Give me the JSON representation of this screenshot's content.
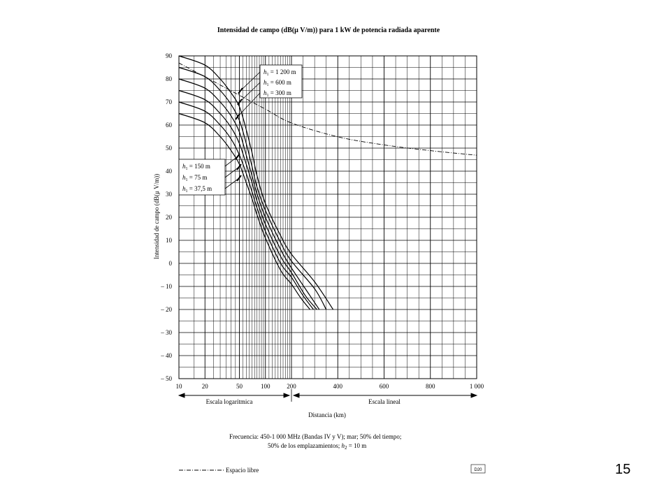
{
  "page_number": "15",
  "figure_code": "D20",
  "chart_data": {
    "type": "line",
    "title": "Intensidad de campo (dB(μ V/m)) para 1 kW de potencia radiada aparente",
    "ylabel": "Intensidad de campo (dB(μ V/m))",
    "xlabel": "Distancia (km)",
    "ylim": [
      -50,
      90
    ],
    "xlim": [
      10,
      1000
    ],
    "x_scale": "logarithmic 10–200 km, linear 200–1000 km",
    "y_ticks": [
      "90",
      "80",
      "70",
      "60",
      "50",
      "40",
      "30",
      "20",
      "10",
      "0",
      "– 10",
      "– 20",
      "– 30",
      "– 40",
      "– 50"
    ],
    "x_ticks": [
      {
        "value": 10,
        "label": "10"
      },
      {
        "value": 20,
        "label": "20"
      },
      {
        "value": 50,
        "label": "50"
      },
      {
        "value": 100,
        "label": "100"
      },
      {
        "value": 200,
        "label": "200"
      },
      {
        "value": 400,
        "label": "400"
      },
      {
        "value": 600,
        "label": "600"
      },
      {
        "value": 800,
        "label": "800"
      },
      {
        "value": 1000,
        "label": "1 000"
      }
    ],
    "scale_labels": {
      "log": "Escala logarítmica",
      "linear": "Escala lineal"
    },
    "grid": true,
    "h1_labels_upper": [
      {
        "sym": "h",
        "sub": "1",
        "text": "= 1 200 m"
      },
      {
        "sym": "h",
        "sub": "1",
        "text": "=   600 m"
      },
      {
        "sym": "h",
        "sub": "1",
        "text": "=   300 m"
      }
    ],
    "h1_labels_lower": [
      {
        "sym": "h",
        "sub": "1",
        "text": "= 150   m"
      },
      {
        "sym": "h",
        "sub": "1",
        "text": "=  75   m"
      },
      {
        "sym": "h",
        "sub": "1",
        "text": "=  37,5 m"
      }
    ],
    "series": [
      {
        "label": "h1 = 1 200 m",
        "x": [
          10,
          20,
          30,
          40,
          50,
          60,
          70,
          80,
          100,
          150,
          200,
          300,
          380
        ],
        "y": [
          90,
          86,
          80,
          74,
          68,
          58,
          48,
          38,
          26,
          12,
          4,
          -8,
          -20
        ]
      },
      {
        "label": "h1 = 600 m",
        "x": [
          10,
          20,
          30,
          40,
          50,
          60,
          70,
          80,
          100,
          150,
          200,
          300,
          350
        ],
        "y": [
          85,
          81,
          75,
          69,
          62,
          52,
          42,
          33,
          23,
          9,
          1,
          -11,
          -20
        ]
      },
      {
        "label": "h1 = 300 m",
        "x": [
          10,
          20,
          30,
          40,
          50,
          60,
          70,
          80,
          100,
          150,
          200,
          280,
          320
        ],
        "y": [
          80,
          76,
          70,
          64,
          57,
          47,
          38,
          30,
          20,
          6,
          -2,
          -14,
          -20
        ]
      },
      {
        "label": "h1 = 150 m",
        "x": [
          10,
          20,
          30,
          40,
          50,
          60,
          70,
          80,
          100,
          150,
          200,
          260,
          310
        ],
        "y": [
          75,
          71,
          65,
          59,
          52,
          43,
          35,
          27,
          17,
          3,
          -4,
          -14,
          -20
        ]
      },
      {
        "label": "h1 = 75 m",
        "x": [
          10,
          20,
          30,
          40,
          50,
          60,
          70,
          80,
          100,
          150,
          200,
          250,
          295
        ],
        "y": [
          70,
          66,
          60,
          54,
          47,
          39,
          31,
          24,
          14,
          0,
          -6,
          -14,
          -20
        ]
      },
      {
        "label": "h1 = 37,5 m",
        "x": [
          10,
          20,
          30,
          40,
          50,
          60,
          70,
          80,
          100,
          150,
          200,
          240,
          280
        ],
        "y": [
          65,
          61,
          55,
          49,
          43,
          35,
          28,
          21,
          11,
          -3,
          -9,
          -15,
          -20
        ]
      }
    ],
    "free_space": {
      "label": "Espacio libre",
      "x": [
        10,
        20,
        50,
        100,
        200,
        400,
        600,
        800,
        1000
      ],
      "y": [
        86.9,
        80.9,
        72.9,
        66.9,
        60.9,
        54.9,
        51.4,
        48.9,
        46.9
      ]
    },
    "footnote_line1": "Frecuencia: 450-1 000 MHz (Bandas IV y V); mar; 50% del tiempo;",
    "footnote_line2_a": "50% de los emplazamientos; ",
    "footnote_line2_b": " = 10 m",
    "footnote_sym": "h",
    "footnote_sub": "2"
  }
}
